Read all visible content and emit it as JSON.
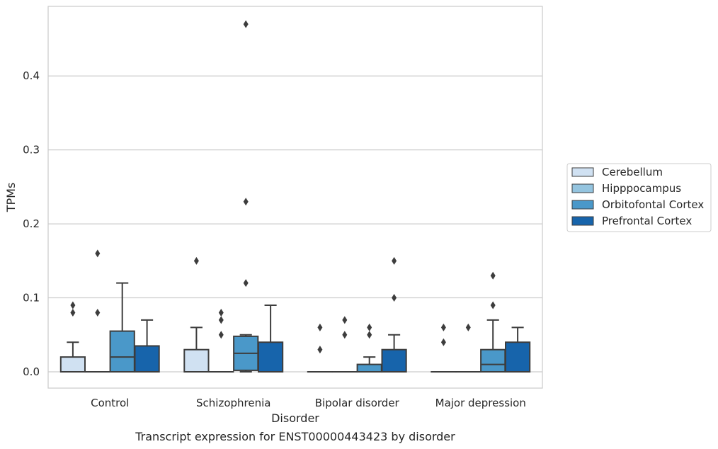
{
  "chart_data": {
    "type": "box",
    "title": "Transcript expression for ENST00000443423 by disorder",
    "xlabel": "Disorder",
    "ylabel": "TPMs",
    "ylim": [
      -0.022,
      0.494
    ],
    "yticks": [
      0.0,
      0.1,
      0.2,
      0.3,
      0.4
    ],
    "ytick_labels": [
      "0.0",
      "0.1",
      "0.2",
      "0.3",
      "0.4"
    ],
    "grid": "horizontal",
    "legend": "outside-right",
    "categories": [
      "Control",
      "Schizophrenia",
      "Bipolar disorder",
      "Major depression"
    ],
    "series": [
      {
        "name": "Cerebellum",
        "color": "#d0e1f2",
        "boxes": [
          {
            "q1": 0.0,
            "median": 0.0,
            "q3": 0.02,
            "whisker_low": 0.0,
            "whisker_high": 0.04,
            "outliers": [
              0.08,
              0.09
            ]
          },
          {
            "q1": 0.0,
            "median": 0.0,
            "q3": 0.03,
            "whisker_low": 0.0,
            "whisker_high": 0.06,
            "outliers": [
              0.15
            ]
          },
          {
            "q1": 0.0,
            "median": 0.0,
            "q3": 0.0,
            "whisker_low": 0.0,
            "whisker_high": 0.0,
            "outliers": [
              0.03,
              0.06
            ]
          },
          {
            "q1": 0.0,
            "median": 0.0,
            "q3": 0.0,
            "whisker_low": 0.0,
            "whisker_high": 0.0,
            "outliers": [
              0.04,
              0.06
            ]
          }
        ]
      },
      {
        "name": "Hipppocampus",
        "color": "#94c4df",
        "boxes": [
          {
            "q1": 0.0,
            "median": 0.0,
            "q3": 0.0,
            "whisker_low": 0.0,
            "whisker_high": 0.0,
            "outliers": [
              0.08,
              0.16
            ]
          },
          {
            "q1": 0.0,
            "median": 0.0,
            "q3": 0.0,
            "whisker_low": 0.0,
            "whisker_high": 0.0,
            "outliers": [
              0.05,
              0.07,
              0.08
            ]
          },
          {
            "q1": 0.0,
            "median": 0.0,
            "q3": 0.0,
            "whisker_low": 0.0,
            "whisker_high": 0.0,
            "outliers": [
              0.05,
              0.07
            ]
          },
          {
            "q1": 0.0,
            "median": 0.0,
            "q3": 0.0,
            "whisker_low": 0.0,
            "whisker_high": 0.0,
            "outliers": [
              0.06
            ]
          }
        ]
      },
      {
        "name": "Orbitofontal Cortex",
        "color": "#4a98c9",
        "boxes": [
          {
            "q1": 0.0,
            "median": 0.02,
            "q3": 0.055,
            "whisker_low": 0.0,
            "whisker_high": 0.12,
            "outliers": []
          },
          {
            "q1": 0.002,
            "median": 0.025,
            "q3": 0.048,
            "whisker_low": 0.0,
            "whisker_high": 0.05,
            "outliers": [
              0.12,
              0.23,
              0.47
            ]
          },
          {
            "q1": 0.0,
            "median": 0.0,
            "q3": 0.01,
            "whisker_low": 0.0,
            "whisker_high": 0.02,
            "outliers": [
              0.05,
              0.06
            ]
          },
          {
            "q1": 0.0,
            "median": 0.01,
            "q3": 0.03,
            "whisker_low": 0.0,
            "whisker_high": 0.07,
            "outliers": [
              0.09,
              0.13
            ]
          }
        ]
      },
      {
        "name": "Prefrontal Cortex",
        "color": "#1764ab",
        "boxes": [
          {
            "q1": 0.0,
            "median": 0.0,
            "q3": 0.035,
            "whisker_low": 0.0,
            "whisker_high": 0.07,
            "outliers": []
          },
          {
            "q1": 0.0,
            "median": 0.0,
            "q3": 0.04,
            "whisker_low": 0.0,
            "whisker_high": 0.09,
            "outliers": []
          },
          {
            "q1": 0.0,
            "median": 0.0,
            "q3": 0.03,
            "whisker_low": 0.0,
            "whisker_high": 0.05,
            "outliers": [
              0.1,
              0.15
            ]
          },
          {
            "q1": 0.0,
            "median": 0.0,
            "q3": 0.04,
            "whisker_low": 0.0,
            "whisker_high": 0.06,
            "outliers": []
          }
        ]
      }
    ]
  }
}
